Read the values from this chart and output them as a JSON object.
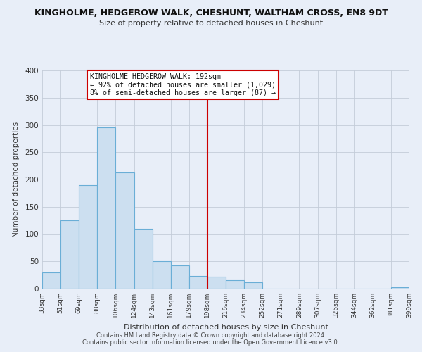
{
  "title": "KINGHOLME, HEDGEROW WALK, CHESHUNT, WALTHAM CROSS, EN8 9DT",
  "subtitle": "Size of property relative to detached houses in Cheshunt",
  "xlabel": "Distribution of detached houses by size in Cheshunt",
  "ylabel": "Number of detached properties",
  "bins": [
    "33sqm",
    "51sqm",
    "69sqm",
    "88sqm",
    "106sqm",
    "124sqm",
    "143sqm",
    "161sqm",
    "179sqm",
    "198sqm",
    "216sqm",
    "234sqm",
    "252sqm",
    "271sqm",
    "289sqm",
    "307sqm",
    "326sqm",
    "344sqm",
    "362sqm",
    "381sqm",
    "399sqm"
  ],
  "values": [
    30,
    125,
    190,
    295,
    213,
    110,
    50,
    43,
    23,
    22,
    16,
    11,
    0,
    0,
    0,
    0,
    0,
    0,
    0,
    2
  ],
  "bar_color": "#ccdff0",
  "bar_edge_color": "#6aaed6",
  "marker_bin_index": 9,
  "marker_color": "#cc0000",
  "annotation_title": "KINGHOLME HEDGEROW WALK: 192sqm",
  "annotation_line1": "← 92% of detached houses are smaller (1,029)",
  "annotation_line2": "8% of semi-detached houses are larger (87) →",
  "ylim": [
    0,
    400
  ],
  "yticks": [
    0,
    50,
    100,
    150,
    200,
    250,
    300,
    350,
    400
  ],
  "footnote1": "Contains HM Land Registry data © Crown copyright and database right 2024.",
  "footnote2": "Contains public sector information licensed under the Open Government Licence v3.0.",
  "bg_color": "#e8eef8",
  "plot_bg_color": "#e8eef8",
  "grid_color": "#c4ccd8"
}
